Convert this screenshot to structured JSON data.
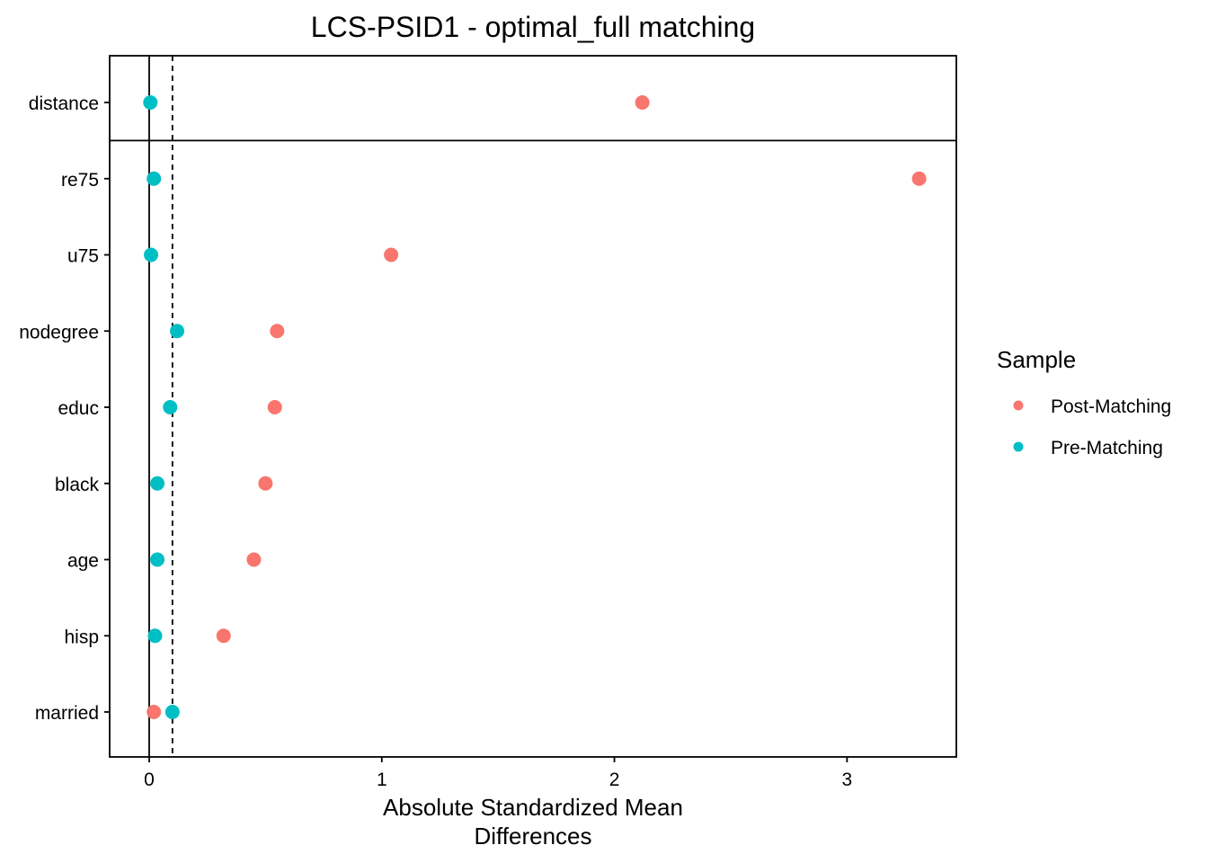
{
  "chart_data": {
    "type": "scatter",
    "title": "LCS-PSID1 - optimal_full matching",
    "xlabel_lines": [
      "Absolute Standardized Mean",
      "Differences"
    ],
    "ylabel": "",
    "xlim": [
      -0.17,
      3.47
    ],
    "x_ticks": [
      0,
      1,
      2,
      3
    ],
    "x_tick_labels": [
      "0",
      "1",
      "2",
      "3"
    ],
    "reference_lines": {
      "solid": 0,
      "dashed": 0.1
    },
    "categories": [
      "distance",
      "re75",
      "u75",
      "nodegree",
      "educ",
      "black",
      "age",
      "hisp",
      "married"
    ],
    "series": [
      {
        "name": "Post-Matching",
        "color": "#F8766D",
        "values": [
          2.12,
          3.31,
          1.04,
          0.55,
          0.54,
          0.5,
          0.45,
          0.32,
          0.02
        ]
      },
      {
        "name": "Pre-Matching",
        "color": "#00BFC4",
        "values": [
          0.005,
          0.02,
          0.008,
          0.12,
          0.09,
          0.035,
          0.035,
          0.025,
          0.1
        ]
      }
    ],
    "legend": {
      "title": "Sample",
      "position": "right",
      "items": [
        "Post-Matching",
        "Pre-Matching"
      ]
    },
    "separator_after_first_category": true,
    "grid": false
  }
}
